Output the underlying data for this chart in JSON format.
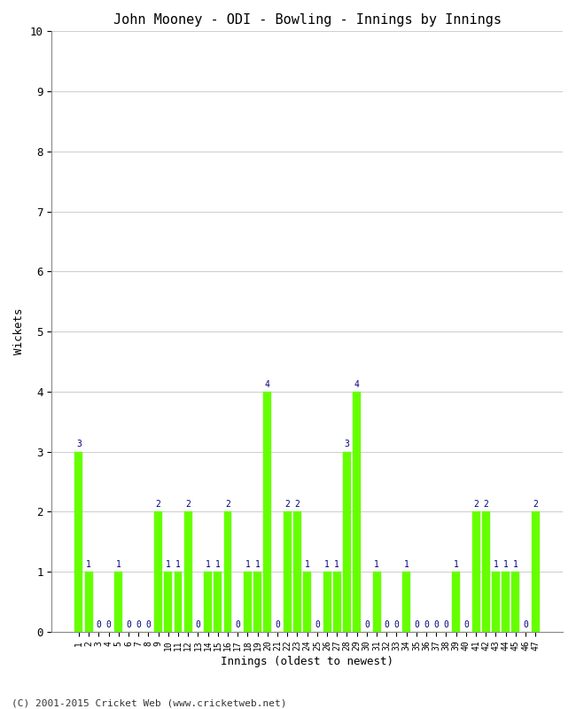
{
  "title": "John Mooney - ODI - Bowling - Innings by Innings",
  "xlabel": "Innings (oldest to newest)",
  "ylabel": "Wickets",
  "ylim": [
    0,
    10
  ],
  "bar_color": "#66ff00",
  "label_color": "#000080",
  "background_color": "#ffffff",
  "grid_color": "#d0d0d0",
  "footer": "(C) 2001-2015 Cricket Web (www.cricketweb.net)",
  "innings_labels": [
    "1",
    "2",
    "3",
    "4",
    "5",
    "6",
    "7",
    "8",
    "9",
    "10",
    "11",
    "12",
    "13",
    "14",
    "15",
    "16",
    "17",
    "18",
    "19",
    "20",
    "21",
    "22",
    "23",
    "24",
    "25",
    "26",
    "27",
    "28",
    "29",
    "30",
    "31",
    "32",
    "33",
    "34",
    "35",
    "36",
    "37",
    "38",
    "39",
    "40",
    "41",
    "42",
    "43",
    "44",
    "45",
    "46",
    "47"
  ],
  "wickets": [
    3,
    1,
    0,
    0,
    1,
    0,
    0,
    0,
    2,
    1,
    1,
    2,
    0,
    1,
    1,
    2,
    0,
    1,
    1,
    4,
    0,
    2,
    2,
    1,
    0,
    1,
    1,
    3,
    4,
    0,
    1,
    0,
    0,
    1,
    0,
    0,
    0,
    0,
    1,
    0,
    2,
    2,
    1,
    1,
    1,
    0,
    2
  ]
}
